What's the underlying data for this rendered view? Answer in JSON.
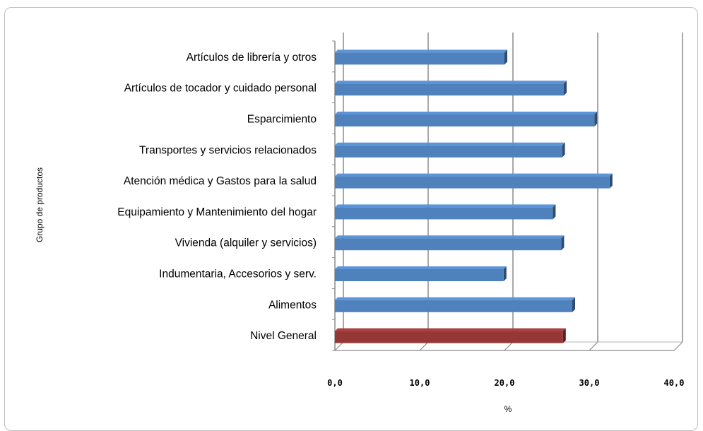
{
  "chart_data": {
    "type": "bar",
    "orientation": "horizontal",
    "title": "",
    "xlabel": "%",
    "ylabel": "Grupo de productos",
    "xlim": [
      0,
      40
    ],
    "x_ticks": [
      "0,0",
      "10,0",
      "20,0",
      "30,0",
      "40,0"
    ],
    "grid": "vertical major gridlines",
    "legend": "none",
    "categories": [
      "Artículos de librería y otros",
      "Artículos de tocador y cuidado personal",
      "Esparcimiento",
      "Transportes y servicios relacionados",
      "Atención médica y Gastos para la salud",
      "Equipamiento y Mantenimiento del hogar",
      "Vivienda (alquiler y servicios)",
      "Indumentaria, Accesorios y serv.",
      "Alimentos",
      "Nivel General"
    ],
    "values": [
      20.0,
      27.0,
      30.6,
      26.8,
      32.4,
      25.7,
      26.7,
      19.9,
      28.0,
      26.9
    ],
    "colors": [
      "#4f81bd",
      "#4f81bd",
      "#4f81bd",
      "#4f81bd",
      "#4f81bd",
      "#4f81bd",
      "#4f81bd",
      "#4f81bd",
      "#4f81bd",
      "#953735"
    ]
  }
}
